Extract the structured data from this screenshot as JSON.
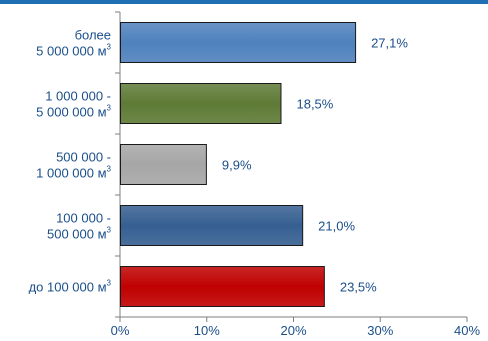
{
  "chart_data": {
    "type": "bar",
    "orientation": "horizontal",
    "categories": [
      {
        "lines": [
          "более",
          "5 000 000 м"
        ],
        "sup": "3"
      },
      {
        "lines": [
          "1 000 000 -",
          "5 000 000 м"
        ],
        "sup": "3"
      },
      {
        "lines": [
          "500 000 -",
          "1 000 000 м"
        ],
        "sup": "3"
      },
      {
        "lines": [
          "100 000 -",
          "500 000 м"
        ],
        "sup": "3"
      },
      {
        "lines": [
          "до 100 000 м"
        ],
        "sup": "3"
      }
    ],
    "values": [
      27.1,
      18.5,
      9.9,
      21.0,
      23.5
    ],
    "value_labels": [
      "27,1%",
      "18,5%",
      "9,9%",
      "21,0%",
      "23,5%"
    ],
    "colors": [
      "#4f81bd",
      "#5e7a36",
      "#a6a6a6",
      "#365f91",
      "#c00000"
    ],
    "xlim": [
      0,
      40
    ],
    "xticks": [
      0,
      10,
      20,
      30,
      40
    ],
    "xtick_labels": [
      "0%",
      "10%",
      "20%",
      "30%",
      "40%"
    ],
    "grid": false,
    "legend": "none"
  },
  "accent_color": "#1f6fb5"
}
